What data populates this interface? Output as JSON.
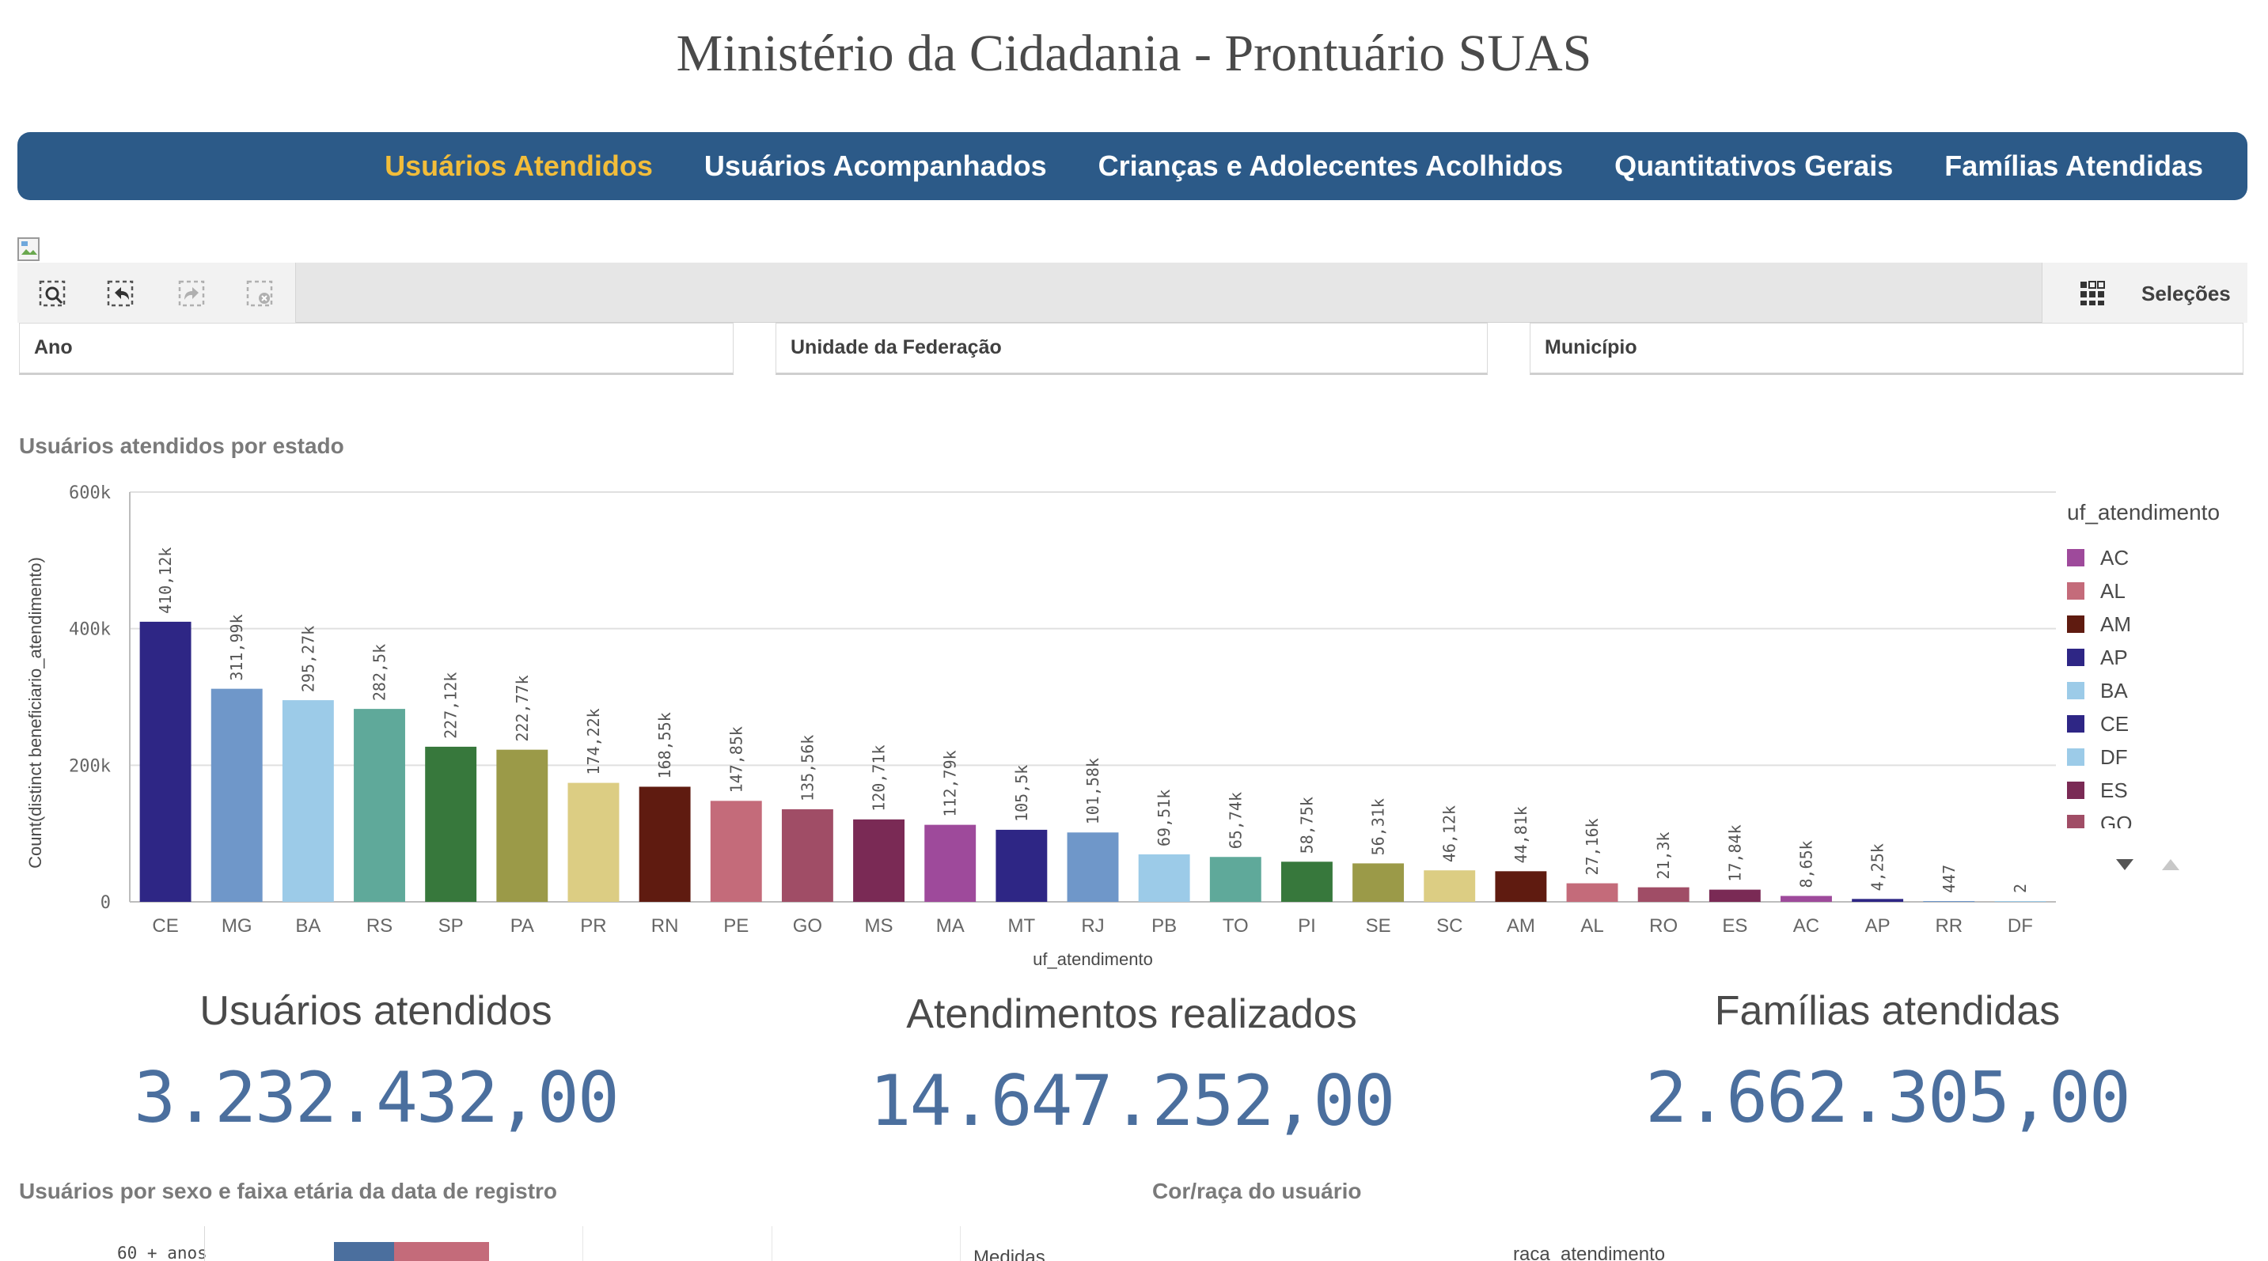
{
  "page": {
    "title": "Ministério da Cidadania - Prontuário SUAS"
  },
  "nav": {
    "items": [
      {
        "label": "Usuários Atendidos",
        "active": true
      },
      {
        "label": "Usuários Acompanhados",
        "active": false
      },
      {
        "label": "Crianças e Adolecentes Acolhidos",
        "active": false
      },
      {
        "label": "Quantitativos Gerais",
        "active": false
      },
      {
        "label": "Famílias Atendidas",
        "active": false
      }
    ]
  },
  "toolbar": {
    "tools": [
      "smart-search-icon",
      "step-back-icon",
      "step-forward-icon",
      "clear-selections-icon"
    ],
    "selections_label": "Seleções"
  },
  "filters": {
    "ano": "Ano",
    "uf": "Unidade da Federação",
    "municipio": "Município"
  },
  "chart_section": {
    "title": "Usuários atendidos por estado"
  },
  "chart_data": {
    "type": "bar",
    "xlabel": "uf_atendimento",
    "ylabel": "Count(distinct beneficiario_atendimento)",
    "ylim": [
      0,
      600000
    ],
    "yticks": [
      0,
      200000,
      400000,
      600000
    ],
    "ytick_labels": [
      "0",
      "200k",
      "400k",
      "600k"
    ],
    "grid": true,
    "legend_position": "right",
    "categories": [
      "CE",
      "MG",
      "BA",
      "RS",
      "SP",
      "PA",
      "PR",
      "RN",
      "PE",
      "GO",
      "MS",
      "MA",
      "MT",
      "RJ",
      "PB",
      "TO",
      "PI",
      "SE",
      "SC",
      "AM",
      "AL",
      "RO",
      "ES",
      "AC",
      "AP",
      "RR",
      "DF"
    ],
    "values": [
      410120,
      311990,
      295270,
      282500,
      227120,
      222770,
      174220,
      168550,
      147850,
      135560,
      120710,
      112790,
      105500,
      101580,
      69510,
      65740,
      58750,
      56310,
      46120,
      44810,
      27160,
      21300,
      17840,
      8650,
      4250,
      447,
      2
    ],
    "data_labels": [
      "410,12k",
      "311,99k",
      "295,27k",
      "282,5k",
      "227,12k",
      "222,77k",
      "174,22k",
      "168,55k",
      "147,85k",
      "135,56k",
      "120,71k",
      "112,79k",
      "105,5k",
      "101,58k",
      "69,51k",
      "65,74k",
      "58,75k",
      "56,31k",
      "46,12k",
      "44,81k",
      "27,16k",
      "21,3k",
      "17,84k",
      "8,65k",
      "4,25k",
      "447",
      "2"
    ],
    "colors": [
      "#2e2685",
      "#6f97c9",
      "#9ccbe8",
      "#5fa99a",
      "#37783c",
      "#9b9a48",
      "#dccd83",
      "#5f1b10",
      "#c46b7a",
      "#a04d66",
      "#7a2a55",
      "#9e4a9b",
      "#2e2685",
      "#6f97c9",
      "#9ccbe8",
      "#5fa99a",
      "#37783c",
      "#9b9a48",
      "#dccd83",
      "#5f1b10",
      "#c46b7a",
      "#a04d66",
      "#7a2a55",
      "#9e4a9b",
      "#2e2685",
      "#6f97c9",
      "#9ccbe8"
    ]
  },
  "legend": {
    "title": "uf_atendimento",
    "items": [
      {
        "label": "AC",
        "color": "#9e4a9b"
      },
      {
        "label": "AL",
        "color": "#c46b7a"
      },
      {
        "label": "AM",
        "color": "#5f1b10"
      },
      {
        "label": "AP",
        "color": "#2e2685"
      },
      {
        "label": "BA",
        "color": "#9ccbe8"
      },
      {
        "label": "CE",
        "color": "#2e2685"
      },
      {
        "label": "DF",
        "color": "#9ccbe8"
      },
      {
        "label": "ES",
        "color": "#7a2a55"
      },
      {
        "label": "GO",
        "color": "#a04d66"
      }
    ]
  },
  "kpis": {
    "usuarios": {
      "title": "Usuários atendidos",
      "value": "3.232.432,00"
    },
    "atendimentos": {
      "title": "Atendimentos realizados",
      "value": "14.647.252,00"
    },
    "familias": {
      "title": "Famílias atendidas",
      "value": "2.662.305,00"
    }
  },
  "bottom": {
    "sexo_title": "Usuários por sexo e faixa etária da data de registro",
    "sexo_first_row": "60 + anos",
    "cor_title": "Cor/raça do usuário",
    "cor_medidas": "Medidas",
    "cor_dimension": "raca_atendimento"
  }
}
